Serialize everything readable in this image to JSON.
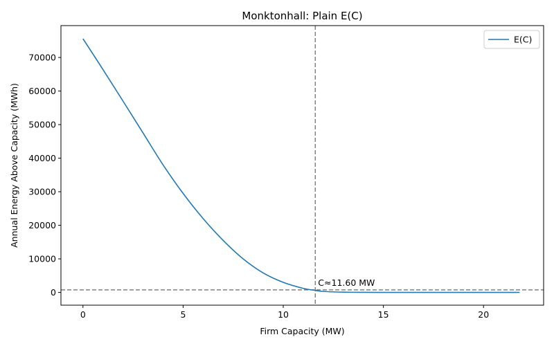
{
  "chart_data": {
    "type": "line",
    "title": "Monktonhall: Plain E(C)",
    "xlabel": "Firm Capacity (MW)",
    "ylabel": "Annual Energy Above Capacity (MWh)",
    "xlim": [
      -1.1,
      23.0
    ],
    "ylim": [
      -3800,
      79500
    ],
    "xticks": [
      0,
      5,
      10,
      15,
      20
    ],
    "xtick_labels": [
      "0",
      "5",
      "10",
      "15",
      "20"
    ],
    "yticks": [
      0,
      10000,
      20000,
      30000,
      40000,
      50000,
      60000,
      70000
    ],
    "ytick_labels": [
      "0",
      "10000",
      "20000",
      "30000",
      "40000",
      "50000",
      "60000",
      "70000"
    ],
    "grid": false,
    "legend": "upper right",
    "series": [
      {
        "name": "E(C)",
        "color": "#1f77b4",
        "x": [
          0,
          1,
          2,
          3,
          4,
          5,
          6,
          7,
          8,
          9,
          10,
          11,
          11.6,
          12,
          13,
          14,
          15,
          16,
          17,
          18,
          19,
          20,
          21,
          21.8
        ],
        "y": [
          75600,
          66400,
          57000,
          47500,
          38000,
          29500,
          22000,
          15500,
          10000,
          5800,
          3000,
          1200,
          600,
          300,
          80,
          20,
          5,
          0,
          0,
          0,
          0,
          0,
          0,
          0
        ]
      }
    ],
    "reference_lines": {
      "vertical_x": 11.6,
      "horizontal_y": 750,
      "color": "#808080",
      "style": "dashed"
    },
    "annotation": {
      "text": "C≈11.60 MW",
      "x": 11.6,
      "y": 750
    }
  }
}
